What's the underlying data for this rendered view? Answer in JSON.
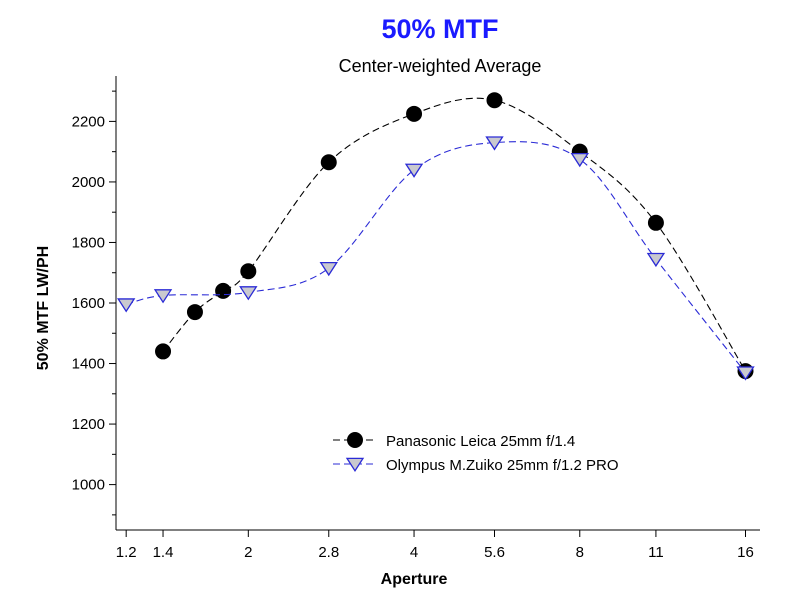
{
  "chart_data": {
    "type": "line",
    "title": "50% MTF",
    "subtitle": "Center-weighted Average",
    "xlabel": "Aperture",
    "ylabel": "50% MTF  LW/PH",
    "x_scale": "log2",
    "x_ticks": [
      "1.2",
      "1.4",
      "2",
      "2.8",
      "4",
      "5.6",
      "8",
      "11",
      "16"
    ],
    "y_ticks": [
      "1000",
      "1200",
      "1400",
      "1600",
      "1800",
      "2000",
      "2200"
    ],
    "ylim": [
      850,
      2350
    ],
    "xlim": [
      1.15,
      17.0
    ],
    "grid": false,
    "legend_position": "bottom-center",
    "series": [
      {
        "name": "Panasonic Leica 25mm f/1.4",
        "color": "#000000",
        "marker": "circle",
        "line_style": "dashed",
        "x": [
          1.4,
          1.6,
          1.8,
          2,
          2.8,
          4,
          5.6,
          8,
          11,
          16
        ],
        "values": [
          1440,
          1570,
          1640,
          1705,
          2065,
          2225,
          2270,
          2100,
          1865,
          1375
        ]
      },
      {
        "name": "Olympus M.Zuiko 25mm f/1.2 PRO",
        "color": "#2b2bd6",
        "marker": "triangle-down",
        "line_style": "dashed",
        "x": [
          1.2,
          1.4,
          2,
          2.8,
          4,
          5.6,
          8,
          11,
          16
        ],
        "values": [
          1595,
          1625,
          1635,
          1715,
          2040,
          2130,
          2075,
          1745,
          1370
        ]
      }
    ]
  }
}
